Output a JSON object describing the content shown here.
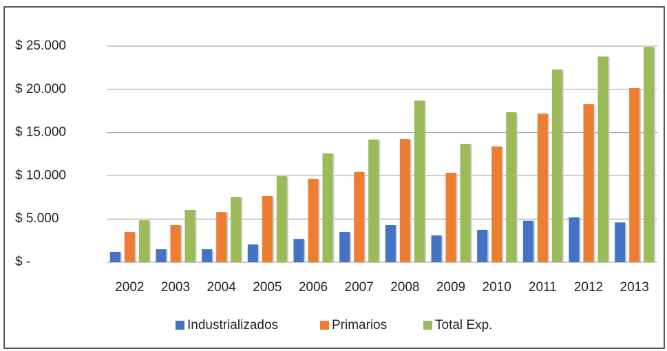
{
  "chart_data": {
    "type": "bar",
    "categories": [
      "2002",
      "2003",
      "2004",
      "2005",
      "2006",
      "2007",
      "2008",
      "2009",
      "2010",
      "2011",
      "2012",
      "2013"
    ],
    "series": [
      {
        "name": "Industrializados",
        "color": "#4472c4",
        "values": [
          1200,
          1500,
          1500,
          2050,
          2700,
          3500,
          4300,
          3100,
          3750,
          4800,
          5200,
          4600
        ]
      },
      {
        "name": "Primarios",
        "color": "#ed7d31",
        "values": [
          3500,
          4300,
          5800,
          7650,
          9650,
          10450,
          14250,
          10350,
          13400,
          17200,
          18300,
          20150
        ]
      },
      {
        "name": "Total Exp.",
        "color": "#9bbb59",
        "values": [
          4850,
          6050,
          7550,
          9950,
          12600,
          14200,
          18700,
          13700,
          17350,
          22300,
          23800,
          24900
        ]
      }
    ],
    "ylim": [
      0,
      25000
    ],
    "yticks": [
      {
        "value": 0,
        "label": "$ -"
      },
      {
        "value": 5000,
        "label": "$ 5.000"
      },
      {
        "value": 10000,
        "label": "$ 10.000"
      },
      {
        "value": 15000,
        "label": "$ 15.000"
      },
      {
        "value": 20000,
        "label": "$ 20.000"
      },
      {
        "value": 25000,
        "label": "$ 25.000"
      }
    ],
    "grid": true,
    "legend": "bottom"
  }
}
